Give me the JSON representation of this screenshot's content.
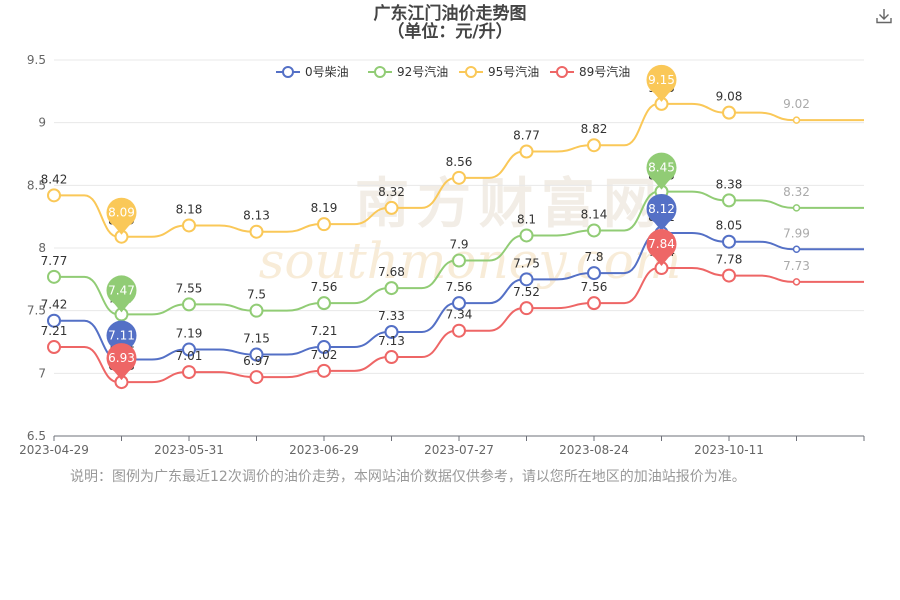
{
  "page": {
    "title_line1": "广东江门油价走势图",
    "title_line2": "（单位：元/升）",
    "note": "说明：图例为广东最近12次调价的油价走势，本网站油价数据仅供参考，请以您所在地区的加油站报价为准。",
    "watermark_cn": "南方财富网",
    "watermark_en": "southmoney.com",
    "download_icon": "download-icon"
  },
  "chart_data": {
    "type": "line",
    "title": "广东江门油价走势图",
    "subtitle": "（单位：元/升）",
    "ylim": [
      6.5,
      9.5
    ],
    "yticks": [
      6.5,
      7,
      7.5,
      8,
      8.5,
      9,
      9.5
    ],
    "ytick_labels": [
      "6.5",
      "7",
      "7.5",
      "8",
      "8.5",
      "9",
      "9.5"
    ],
    "xtick_labels": [
      "2023-04-29",
      "2023-05-31",
      "2023-06-29",
      "2023-07-27",
      "2023-08-24",
      "2023-10-11"
    ],
    "grid": true,
    "legend": "top-center",
    "series": [
      {
        "name": "0号柴油",
        "color": "#5470c6",
        "values": [
          7.42,
          7.11,
          7.19,
          7.15,
          7.21,
          7.33,
          7.56,
          7.75,
          7.8,
          8.12,
          8.05,
          7.99
        ],
        "label_texts": [
          "7.42",
          "7.11",
          "7.19",
          "7.15",
          "7.21",
          "7.33",
          "7.56",
          "7.75",
          "7.8",
          "8.12",
          "8.05",
          "7.99"
        ]
      },
      {
        "name": "92号汽油",
        "color": "#91cc75",
        "values": [
          7.77,
          7.47,
          7.55,
          7.5,
          7.56,
          7.68,
          7.9,
          8.1,
          8.14,
          8.45,
          8.38,
          8.32
        ],
        "label_texts": [
          "7.77",
          "7.47",
          "7.55",
          "7.5",
          "7.56",
          "7.68",
          "7.9",
          "8.1",
          "8.14",
          "8.45",
          "8.38",
          "8.32"
        ]
      },
      {
        "name": "95号汽油",
        "color": "#fac858",
        "values": [
          8.42,
          8.09,
          8.18,
          8.13,
          8.19,
          8.32,
          8.56,
          8.77,
          8.82,
          9.15,
          9.08,
          9.02
        ],
        "label_texts": [
          "8.42",
          "8.09",
          "8.18",
          "8.13",
          "8.19",
          "8.32",
          "8.56",
          "8.77",
          "8.82",
          "9.15",
          "9.08",
          "9.02"
        ]
      },
      {
        "name": "89号汽油",
        "color": "#ee6666",
        "values": [
          7.21,
          6.93,
          7.01,
          6.97,
          7.02,
          7.13,
          7.34,
          7.52,
          7.56,
          7.84,
          7.78,
          7.73
        ],
        "label_texts": [
          "7.21",
          "6.93",
          "7.01",
          "6.97",
          "7.02",
          "7.13",
          "7.34",
          "7.52",
          "7.56",
          "7.84",
          "7.78",
          "7.73"
        ]
      }
    ],
    "markers": [
      {
        "series": "0号柴油",
        "kind": "min",
        "value": 7.11,
        "label": "7.11"
      },
      {
        "series": "0号柴油",
        "kind": "max",
        "value": 8.12,
        "label": "8.12"
      },
      {
        "series": "92号汽油",
        "kind": "min",
        "value": 7.47,
        "label": "7.47"
      },
      {
        "series": "92号汽油",
        "kind": "max",
        "value": 8.45,
        "label": "8.45"
      },
      {
        "series": "95号汽油",
        "kind": "min",
        "value": 8.09,
        "label": "8.09"
      },
      {
        "series": "95号汽油",
        "kind": "max",
        "value": 9.15,
        "label": "9.15"
      },
      {
        "series": "89号汽油",
        "kind": "min",
        "value": 6.93,
        "label": "6.93"
      },
      {
        "series": "89号汽油",
        "kind": "max",
        "value": 7.84,
        "label": "7.84"
      }
    ]
  }
}
